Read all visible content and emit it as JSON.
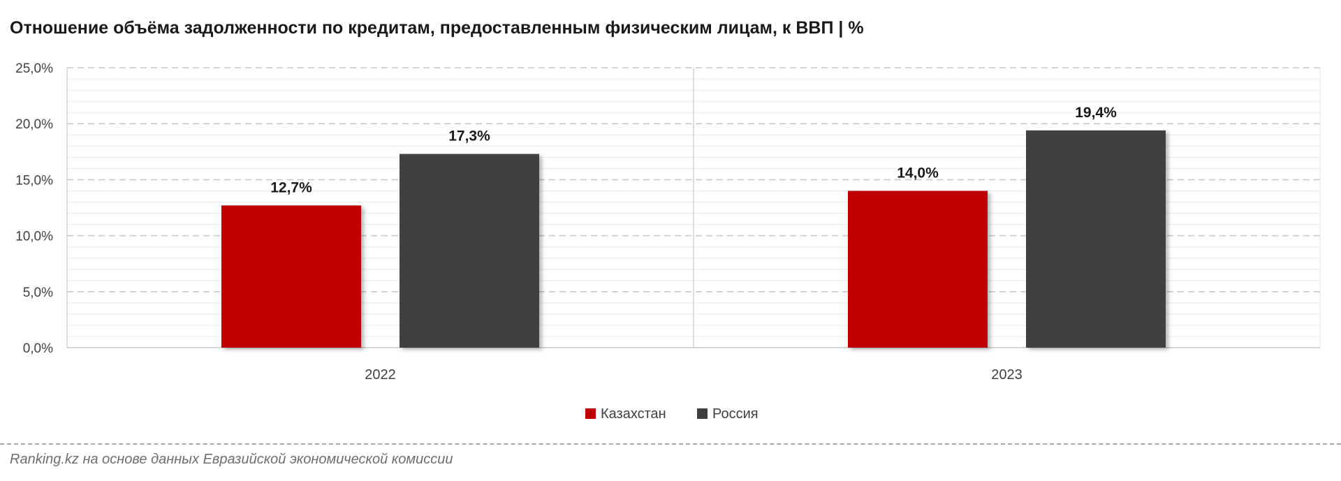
{
  "chart_data": {
    "type": "bar",
    "title": "Отношение объёма задолженности по кредитам, предоставленным физическим лицам, к ВВП | %",
    "categories": [
      "2022",
      "2023"
    ],
    "series": [
      {
        "name": "Казахстан",
        "values": [
          12.7,
          14.0
        ],
        "color": "#c00000"
      },
      {
        "name": "Россия",
        "values": [
          17.3,
          19.4
        ],
        "color": "#404040"
      }
    ],
    "data_labels": [
      [
        "12,7%",
        "14,0%"
      ],
      [
        "17,3%",
        "19,4%"
      ]
    ],
    "ylim": [
      0,
      25
    ],
    "yticks": [
      0,
      5,
      10,
      15,
      20,
      25
    ],
    "ytick_labels": [
      "0,0%",
      "5,0%",
      "10,0%",
      "15,0%",
      "20,0%",
      "25,0%"
    ],
    "xlabel": "",
    "ylabel": "",
    "grid": true,
    "legend_position": "bottom"
  },
  "source": "Ranking.kz на основе данных Евразийской экономической комиссии"
}
